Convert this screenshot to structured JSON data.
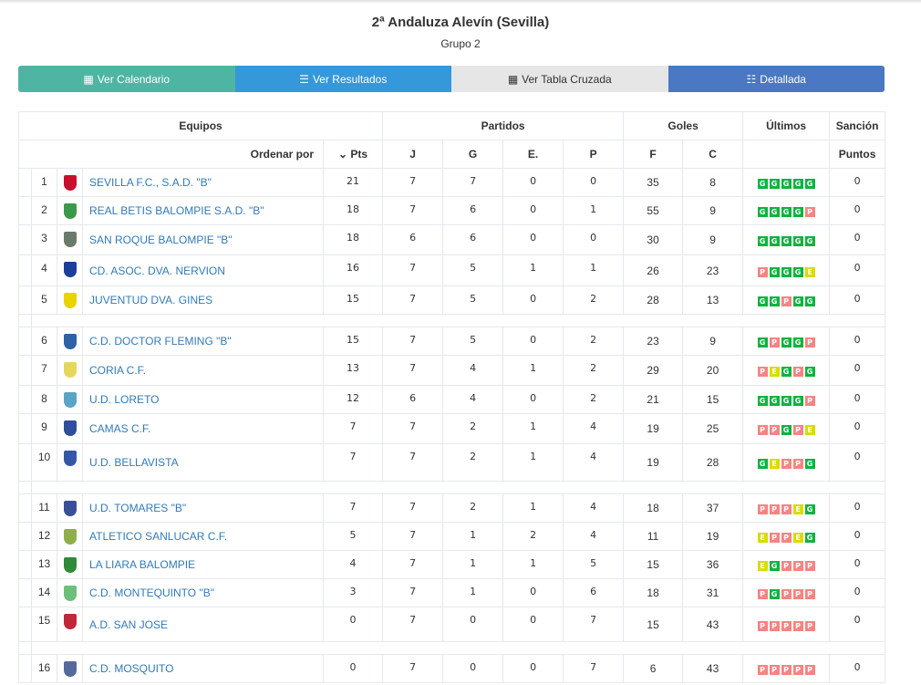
{
  "title": "2ª Andaluza Alevín (Sevilla)",
  "subtitle": "Grupo 2",
  "buttons": [
    {
      "label": "Ver Calendario",
      "icon": "calendar-icon"
    },
    {
      "label": "Ver Resultados",
      "icon": "list-icon"
    },
    {
      "label": "Ver Tabla Cruzada",
      "icon": "calculator-icon"
    },
    {
      "label": "Detallada",
      "icon": "detail-list-icon"
    }
  ],
  "colors": {
    "G": "#0eb33f",
    "E": "#d9dc00",
    "P": "#f78383",
    "link": "#337ab7"
  },
  "header": {
    "equipos": "Equipos",
    "partidos": "Partidos",
    "goles": "Goles",
    "ultimos": "Últimos",
    "sancion": "Sanción",
    "ordenar": "Ordenar por",
    "pts": "Pts",
    "j": "J",
    "g": "G",
    "e": "E.",
    "p": "P",
    "f": "F",
    "c": "C",
    "puntos": "Puntos"
  },
  "rows": [
    {
      "pos": "1",
      "team": "SEVILLA F.C., S.A.D. \"B\"",
      "pts": "21",
      "j": "7",
      "g": "7",
      "e": "0",
      "p": "0",
      "f": "35",
      "c": "8",
      "last": "GGGGG",
      "sancion": "0",
      "logo": "#c8102e"
    },
    {
      "pos": "2",
      "team": "REAL BETIS BALOMPIE S.A.D. \"B\"",
      "pts": "18",
      "j": "7",
      "g": "6",
      "e": "0",
      "p": "1",
      "f": "55",
      "c": "9",
      "last": "GGGGP",
      "sancion": "0",
      "logo": "#3a9a4a"
    },
    {
      "pos": "3",
      "team": "SAN ROQUE BALOMPIE \"B\"",
      "pts": "18",
      "j": "6",
      "g": "6",
      "e": "0",
      "p": "0",
      "f": "30",
      "c": "9",
      "last": "GGGGG",
      "sancion": "0",
      "logo": "#6b7a6a"
    },
    {
      "pos": "4",
      "team": "CD. ASOC. DVA. NERVION",
      "pts": "16",
      "j": "7",
      "g": "5",
      "e": "1",
      "p": "1",
      "f": "26",
      "c": "23",
      "last": "PGGGE",
      "sancion": "0",
      "logo": "#1c3f9c"
    },
    {
      "pos": "5",
      "team": "JUVENTUD DVA. GINES",
      "pts": "15",
      "j": "7",
      "g": "5",
      "e": "0",
      "p": "2",
      "f": "28",
      "c": "13",
      "last": "GGPGG",
      "sancion": "0",
      "logo": "#e8d400"
    },
    {
      "pos": "6",
      "team": "C.D. DOCTOR FLEMING \"B\"",
      "pts": "15",
      "j": "7",
      "g": "5",
      "e": "0",
      "p": "2",
      "f": "23",
      "c": "9",
      "last": "GPGGP",
      "sancion": "0",
      "logo": "#2b62a8"
    },
    {
      "pos": "7",
      "team": "CORIA C.F.",
      "pts": "13",
      "j": "7",
      "g": "4",
      "e": "1",
      "p": "2",
      "f": "29",
      "c": "20",
      "last": "PEGPG",
      "sancion": "0",
      "logo": "#e6d75a"
    },
    {
      "pos": "8",
      "team": "U.D. LORETO",
      "pts": "12",
      "j": "6",
      "g": "4",
      "e": "0",
      "p": "2",
      "f": "21",
      "c": "15",
      "last": "GGGGP",
      "sancion": "0",
      "logo": "#5aa4c8"
    },
    {
      "pos": "9",
      "team": "CAMAS C.F.",
      "pts": "7",
      "j": "7",
      "g": "2",
      "e": "1",
      "p": "4",
      "f": "19",
      "c": "25",
      "last": "PPGPE",
      "sancion": "0",
      "logo": "#2f4f9c"
    },
    {
      "pos": "10",
      "team": "U.D. BELLAVISTA",
      "pts": "7",
      "j": "7",
      "g": "2",
      "e": "1",
      "p": "4",
      "f": "19",
      "c": "28",
      "last": "GEPPG",
      "sancion": "0",
      "logo": "#3457a8"
    },
    {
      "pos": "11",
      "team": "U.D. TOMARES \"B\"",
      "pts": "7",
      "j": "7",
      "g": "2",
      "e": "1",
      "p": "4",
      "f": "18",
      "c": "37",
      "last": "PPPEG",
      "sancion": "0",
      "logo": "#3a4f9a"
    },
    {
      "pos": "12",
      "team": "ATLETICO SANLUCAR C.F.",
      "pts": "5",
      "j": "7",
      "g": "1",
      "e": "2",
      "p": "4",
      "f": "11",
      "c": "19",
      "last": "EPPEG",
      "sancion": "0",
      "logo": "#8fae4a"
    },
    {
      "pos": "13",
      "team": "LA LIARA BALOMPIE",
      "pts": "4",
      "j": "7",
      "g": "1",
      "e": "1",
      "p": "5",
      "f": "15",
      "c": "36",
      "last": "EGPPP",
      "sancion": "0",
      "logo": "#2f8a3a"
    },
    {
      "pos": "14",
      "team": "C.D. MONTEQUINTO \"B\"",
      "pts": "3",
      "j": "7",
      "g": "1",
      "e": "0",
      "p": "6",
      "f": "18",
      "c": "31",
      "last": "PGPPP",
      "sancion": "0",
      "logo": "#6cc07a"
    },
    {
      "pos": "15",
      "team": "A.D. SAN JOSE",
      "pts": "0",
      "j": "7",
      "g": "0",
      "e": "0",
      "p": "7",
      "f": "15",
      "c": "43",
      "last": "PPPPP",
      "sancion": "0",
      "logo": "#c0283a"
    },
    {
      "pos": "16",
      "team": "C.D. MOSQUITO",
      "pts": "0",
      "j": "7",
      "g": "0",
      "e": "0",
      "p": "7",
      "f": "6",
      "c": "43",
      "last": "PPPPP",
      "sancion": "0",
      "logo": "#556a9a"
    }
  ]
}
